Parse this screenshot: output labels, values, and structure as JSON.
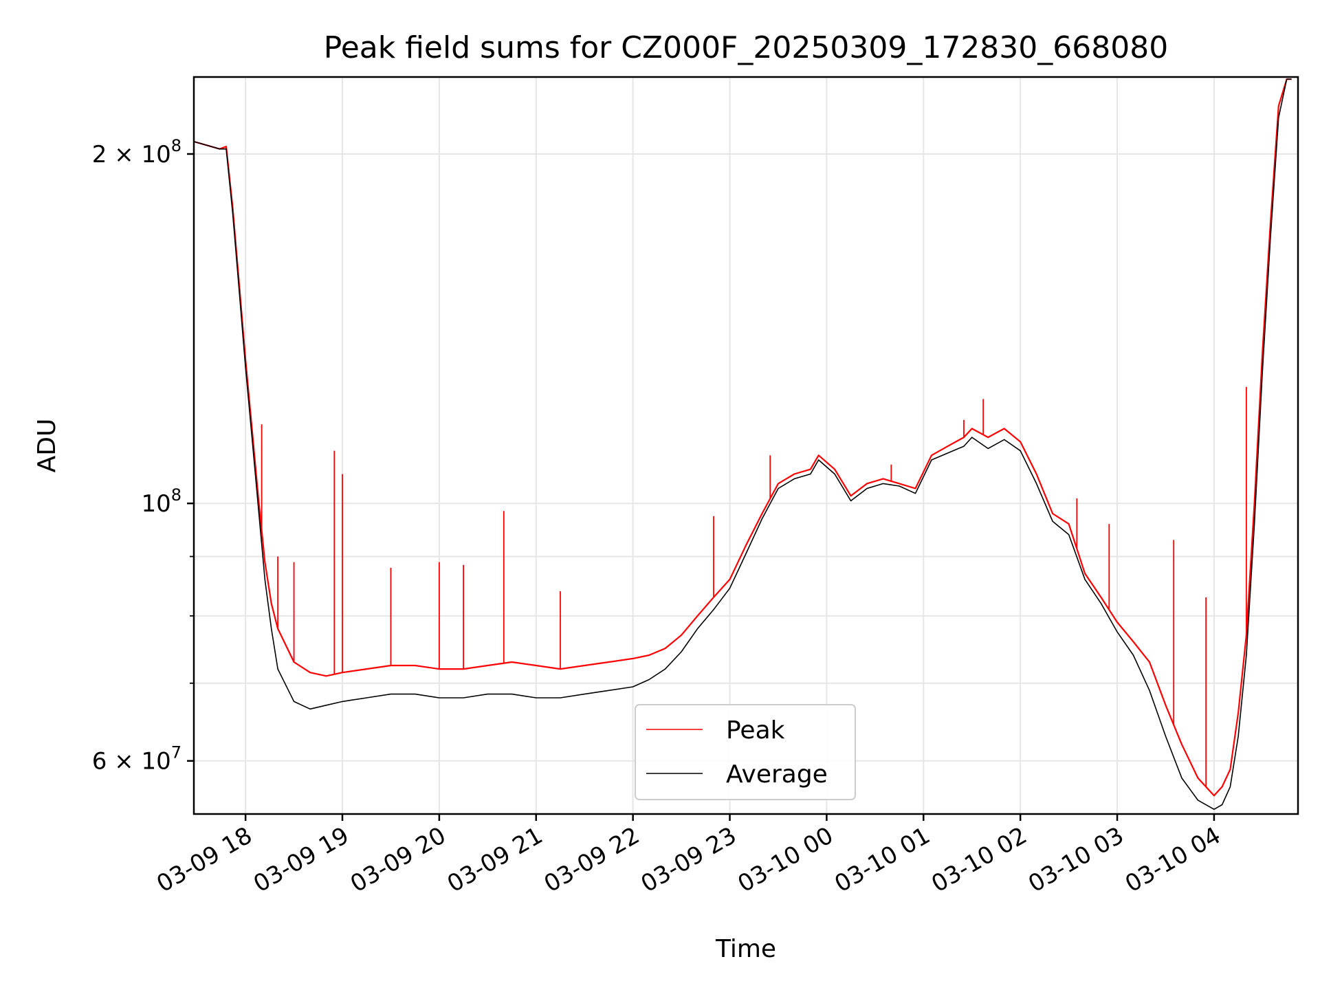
{
  "chart_data": {
    "type": "line",
    "title": "Peak field sums for CZ000F_20250309_172830_668080",
    "xlabel": "Time",
    "ylabel": "ADU",
    "yscale": "log",
    "ylim": [
      54000000,
      233000000
    ],
    "xlim": [
      "2025-03-09 17:28",
      "2025-03-10 04:52"
    ],
    "grid": true,
    "legend_position": "lower center",
    "x_ticks": [
      {
        "t": "2025-03-09 18:00",
        "label": "03-09 18"
      },
      {
        "t": "2025-03-09 19:00",
        "label": "03-09 19"
      },
      {
        "t": "2025-03-09 20:00",
        "label": "03-09 20"
      },
      {
        "t": "2025-03-09 21:00",
        "label": "03-09 21"
      },
      {
        "t": "2025-03-09 22:00",
        "label": "03-09 22"
      },
      {
        "t": "2025-03-09 23:00",
        "label": "03-09 23"
      },
      {
        "t": "2025-03-10 00:00",
        "label": "03-10 00"
      },
      {
        "t": "2025-03-10 01:00",
        "label": "03-10 01"
      },
      {
        "t": "2025-03-10 02:00",
        "label": "03-10 02"
      },
      {
        "t": "2025-03-10 03:00",
        "label": "03-10 03"
      },
      {
        "t": "2025-03-10 04:00",
        "label": "03-10 04"
      }
    ],
    "y_major_ticks": [
      {
        "value": 60000000,
        "mantissa": "6",
        "exponent": "7"
      },
      {
        "value": 100000000,
        "mantissa": "",
        "exponent": "8"
      },
      {
        "value": 200000000,
        "mantissa": "2",
        "exponent": "8"
      }
    ],
    "y_minor_ticks": [
      70000000,
      80000000,
      90000000
    ],
    "series": [
      {
        "name": "Peak",
        "color": "#ff0000",
        "x": [
          "2025-03-09 17:28",
          "2025-03-09 17:44",
          "2025-03-09 17:48",
          "2025-03-09 17:52",
          "2025-03-09 17:56",
          "2025-03-09 18:00",
          "2025-03-09 18:04",
          "2025-03-09 18:08",
          "2025-03-09 18:12",
          "2025-03-09 18:16",
          "2025-03-09 18:20",
          "2025-03-09 18:30",
          "2025-03-09 18:40",
          "2025-03-09 18:50",
          "2025-03-09 19:00",
          "2025-03-09 19:15",
          "2025-03-09 19:30",
          "2025-03-09 19:45",
          "2025-03-09 20:00",
          "2025-03-09 20:15",
          "2025-03-09 20:30",
          "2025-03-09 20:45",
          "2025-03-09 21:00",
          "2025-03-09 21:15",
          "2025-03-09 21:30",
          "2025-03-09 21:45",
          "2025-03-09 22:00",
          "2025-03-09 22:10",
          "2025-03-09 22:20",
          "2025-03-09 22:30",
          "2025-03-09 22:40",
          "2025-03-09 22:50",
          "2025-03-09 23:00",
          "2025-03-09 23:10",
          "2025-03-09 23:20",
          "2025-03-09 23:30",
          "2025-03-09 23:40",
          "2025-03-09 23:50",
          "2025-03-09 23:55",
          "2025-03-10 00:05",
          "2025-03-10 00:15",
          "2025-03-10 00:25",
          "2025-03-10 00:35",
          "2025-03-10 00:45",
          "2025-03-10 00:55",
          "2025-03-10 01:05",
          "2025-03-10 01:15",
          "2025-03-10 01:25",
          "2025-03-10 01:30",
          "2025-03-10 01:40",
          "2025-03-10 01:50",
          "2025-03-10 02:00",
          "2025-03-10 02:10",
          "2025-03-10 02:20",
          "2025-03-10 02:30",
          "2025-03-10 02:40",
          "2025-03-10 02:50",
          "2025-03-10 03:00",
          "2025-03-10 03:10",
          "2025-03-10 03:20",
          "2025-03-10 03:30",
          "2025-03-10 03:40",
          "2025-03-10 03:50",
          "2025-03-10 04:00",
          "2025-03-10 04:05",
          "2025-03-10 04:10",
          "2025-03-10 04:15",
          "2025-03-10 04:20",
          "2025-03-10 04:25",
          "2025-03-10 04:30",
          "2025-03-10 04:35",
          "2025-03-10 04:40",
          "2025-03-10 04:45",
          "2025-03-10 04:48"
        ],
        "y": [
          205000000,
          202000000,
          203000000,
          180000000,
          155000000,
          133000000,
          116000000,
          101000000,
          89000000,
          82000000,
          78000000,
          73000000,
          71500000,
          71000000,
          71500000,
          72000000,
          72500000,
          72500000,
          72000000,
          72000000,
          72500000,
          73000000,
          72500000,
          72000000,
          72500000,
          73000000,
          73500000,
          74000000,
          75000000,
          77000000,
          80000000,
          83000000,
          86000000,
          92000000,
          98000000,
          104000000,
          106000000,
          107000000,
          110000000,
          107000000,
          101500000,
          104000000,
          105000000,
          104000000,
          103000000,
          110000000,
          112000000,
          114000000,
          116000000,
          114000000,
          116000000,
          113000000,
          106000000,
          98000000,
          96000000,
          87000000,
          83000000,
          79000000,
          76000000,
          73000000,
          67000000,
          62000000,
          58000000,
          56000000,
          57000000,
          59000000,
          66000000,
          77000000,
          100000000,
          135000000,
          175000000,
          220000000,
          232000000,
          232000000
        ],
        "spikes": [
          {
            "x": "2025-03-09 18:10",
            "y": 117000000
          },
          {
            "x": "2025-03-09 18:20",
            "y": 90000000
          },
          {
            "x": "2025-03-09 18:30",
            "y": 89000000
          },
          {
            "x": "2025-03-09 18:55",
            "y": 111000000
          },
          {
            "x": "2025-03-09 19:00",
            "y": 106000000
          },
          {
            "x": "2025-03-09 19:30",
            "y": 88000000
          },
          {
            "x": "2025-03-09 20:00",
            "y": 89000000
          },
          {
            "x": "2025-03-09 20:15",
            "y": 88500000
          },
          {
            "x": "2025-03-09 20:40",
            "y": 98500000
          },
          {
            "x": "2025-03-09 21:15",
            "y": 84000000
          },
          {
            "x": "2025-03-09 22:50",
            "y": 97500000
          },
          {
            "x": "2025-03-09 23:25",
            "y": 110000000
          },
          {
            "x": "2025-03-10 00:40",
            "y": 108000000
          },
          {
            "x": "2025-03-10 01:25",
            "y": 118000000
          },
          {
            "x": "2025-03-10 01:37",
            "y": 123000000
          },
          {
            "x": "2025-03-10 02:35",
            "y": 101000000
          },
          {
            "x": "2025-03-10 02:55",
            "y": 96000000
          },
          {
            "x": "2025-03-10 03:35",
            "y": 93000000
          },
          {
            "x": "2025-03-10 03:55",
            "y": 83000000
          },
          {
            "x": "2025-03-10 04:20",
            "y": 126000000
          }
        ]
      },
      {
        "name": "Average",
        "color": "#000000",
        "x": [
          "2025-03-09 17:28",
          "2025-03-09 17:44",
          "2025-03-09 17:48",
          "2025-03-09 17:52",
          "2025-03-09 17:56",
          "2025-03-09 18:00",
          "2025-03-09 18:04",
          "2025-03-09 18:08",
          "2025-03-09 18:12",
          "2025-03-09 18:16",
          "2025-03-09 18:20",
          "2025-03-09 18:30",
          "2025-03-09 18:40",
          "2025-03-09 18:50",
          "2025-03-09 19:00",
          "2025-03-09 19:15",
          "2025-03-09 19:30",
          "2025-03-09 19:45",
          "2025-03-09 20:00",
          "2025-03-09 20:15",
          "2025-03-09 20:30",
          "2025-03-09 20:45",
          "2025-03-09 21:00",
          "2025-03-09 21:15",
          "2025-03-09 21:30",
          "2025-03-09 21:45",
          "2025-03-09 22:00",
          "2025-03-09 22:10",
          "2025-03-09 22:20",
          "2025-03-09 22:30",
          "2025-03-09 22:40",
          "2025-03-09 22:50",
          "2025-03-09 23:00",
          "2025-03-09 23:10",
          "2025-03-09 23:20",
          "2025-03-09 23:30",
          "2025-03-09 23:40",
          "2025-03-09 23:50",
          "2025-03-09 23:55",
          "2025-03-10 00:05",
          "2025-03-10 00:15",
          "2025-03-10 00:25",
          "2025-03-10 00:35",
          "2025-03-10 00:45",
          "2025-03-10 00:55",
          "2025-03-10 01:05",
          "2025-03-10 01:15",
          "2025-03-10 01:25",
          "2025-03-10 01:30",
          "2025-03-10 01:40",
          "2025-03-10 01:50",
          "2025-03-10 02:00",
          "2025-03-10 02:10",
          "2025-03-10 02:20",
          "2025-03-10 02:30",
          "2025-03-10 02:40",
          "2025-03-10 02:50",
          "2025-03-10 03:00",
          "2025-03-10 03:10",
          "2025-03-10 03:20",
          "2025-03-10 03:30",
          "2025-03-10 03:40",
          "2025-03-10 03:50",
          "2025-03-10 04:00",
          "2025-03-10 04:05",
          "2025-03-10 04:10",
          "2025-03-10 04:15",
          "2025-03-10 04:20",
          "2025-03-10 04:25",
          "2025-03-10 04:30",
          "2025-03-10 04:35",
          "2025-03-10 04:40",
          "2025-03-10 04:45",
          "2025-03-10 04:48"
        ],
        "y": [
          205000000,
          202000000,
          202000000,
          178000000,
          153000000,
          131000000,
          114000000,
          99000000,
          86000000,
          78000000,
          72000000,
          67500000,
          66500000,
          67000000,
          67500000,
          68000000,
          68500000,
          68500000,
          68000000,
          68000000,
          68500000,
          68500000,
          68000000,
          68000000,
          68500000,
          69000000,
          69500000,
          70500000,
          72000000,
          74500000,
          78000000,
          81000000,
          84500000,
          90500000,
          97000000,
          103000000,
          105000000,
          106000000,
          109000000,
          106000000,
          100500000,
          103000000,
          104000000,
          103500000,
          102000000,
          109000000,
          110500000,
          112000000,
          114000000,
          111500000,
          113500000,
          111000000,
          104000000,
          96500000,
          94000000,
          86000000,
          82000000,
          77500000,
          74000000,
          69000000,
          63000000,
          58000000,
          55500000,
          54500000,
          55000000,
          57000000,
          63000000,
          74000000,
          96000000,
          130000000,
          170000000,
          215000000,
          232000000,
          232000000
        ]
      }
    ]
  }
}
